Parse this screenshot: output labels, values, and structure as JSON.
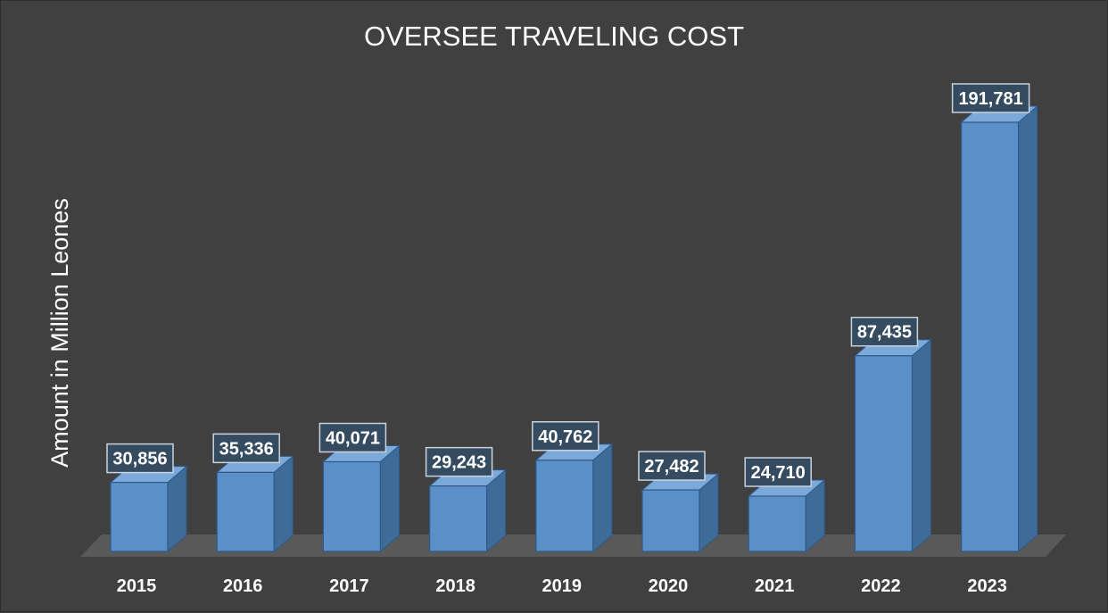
{
  "chart_data": {
    "type": "bar",
    "title": "OVERSEE TRAVELING COST",
    "xlabel": "",
    "ylabel": "Amount in Million Leones",
    "categories": [
      "2015",
      "2016",
      "2017",
      "2018",
      "2019",
      "2020",
      "2021",
      "2022",
      "2023"
    ],
    "series": [
      {
        "values": [
          30856,
          35336,
          40071,
          29243,
          40762,
          27482,
          24710,
          87435,
          191781
        ]
      }
    ],
    "data_labels": [
      "30,856",
      "35,336",
      "40,071",
      "29,243",
      "40,762",
      "27,482",
      "24,710",
      "87,435",
      "191,781"
    ],
    "ylim": [
      0,
      200000
    ],
    "grid": false,
    "legend": "none",
    "style": "3d-column",
    "colors": {
      "background": "#404040",
      "bar_front": "#5b8fc7",
      "bar_side": "#3f6b99",
      "bar_top": "#7aa9da",
      "bar_edge": "#2d5a87",
      "floor": "#595959",
      "label_box": "#354b60",
      "label_border": "#c9d2dc",
      "text": "#ffffff"
    }
  }
}
